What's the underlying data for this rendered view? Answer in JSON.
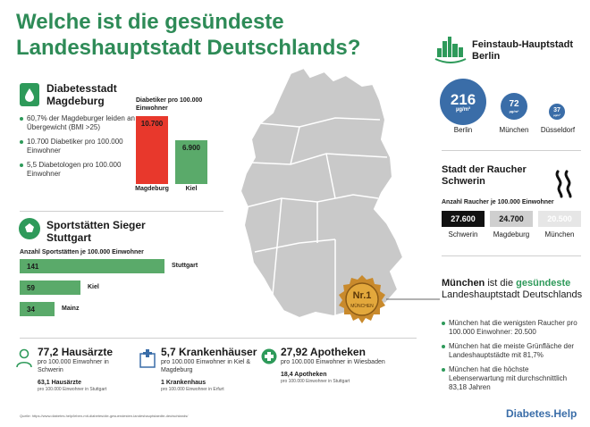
{
  "title": {
    "line1": "Welche ist die gesündeste",
    "line2": "Landeshauptstadt Deutschlands?"
  },
  "diabetes": {
    "title_line1": "Diabetesstadt",
    "title_line2": "Magdeburg",
    "bullets": [
      "60,7% der Magdeburger leiden an Übergewicht (BMI >25)",
      "10.700 Diabetiker pro 100.000 Einwohner",
      "5,5 Diabetologen pro 100.000 Einwohner"
    ],
    "chart_caption": "Diabetiker pro 100.000 Einwohner"
  },
  "sports": {
    "title_line1": "Sportstätten Sieger",
    "title_line2": "Stuttgart",
    "chart_caption": "Anzahl Sportstätten je 100.000 Einwohner"
  },
  "bottom_stats": [
    {
      "value": "77,2 Hausärzte",
      "sub": "pro 100.000 Einwohner in Schwerin",
      "small": "63,1 Hausärzte",
      "tiny": "pro 100.000 Einwohner in Stuttgart",
      "icon": "doctor-icon"
    },
    {
      "value": "5,7 Krankenhäuser",
      "sub": "pro 100.000 Einwohner in Kiel & Magdeburg",
      "small": "1 Krankenhaus",
      "tiny": "pro 100.000 Einwohner in Erfurt",
      "icon": "hospital-icon"
    },
    {
      "value": "27,92 Apotheken",
      "sub": "pro 100.000 Einwohner in Wiesbaden",
      "small": "18,4 Apotheken",
      "tiny": "pro 100.000 Einwohner in Stuttgart",
      "icon": "pharmacy-cross-icon"
    }
  ],
  "feinstaub": {
    "title_line1": "Feinstaub-Hauptstadt",
    "title_line2": "Berlin",
    "unit": "µg/m³",
    "cities": [
      {
        "value": "216",
        "city": "Berlin"
      },
      {
        "value": "72",
        "city": "München"
      },
      {
        "value": "37",
        "city": "Düsseldorf"
      }
    ]
  },
  "raucher": {
    "title_line1": "Stadt der Raucher",
    "title_line2": "Schwerin",
    "caption": "Anzahl Raucher je 100.000 Einwohner"
  },
  "muenchen": {
    "title_pre": "München",
    "title_mid": " ist die ",
    "title_bold": "gesündeste",
    "title_rest": " Landeshauptstadt Deutschlands",
    "badge_top": "Nr.1",
    "badge_bottom": "MÜNCHEN",
    "bullets": [
      "München hat die wenigsten Raucher pro 100.000 Einwohner: 20.500",
      "München hat die meiste Grünfläche der Landeshauptstädte mit 81,7%",
      "München hat die höchste Lebenserwartung mit durchschnittlich 83,18 Jahren"
    ]
  },
  "source": "Quelle: https://www.diabetes.help/leben-mit-diabetes/die-gesuendesten-landeshauptstaedte-deutschlands/",
  "brand": "Diabetes.Help",
  "colors": {
    "green": "#2e9a5a",
    "red": "#e8382c",
    "blue": "#3a6da8",
    "dark": "#111111"
  },
  "chart_data": [
    {
      "type": "bar",
      "title": "Diabetiker pro 100.000 Einwohner",
      "categories": [
        "Magdeburg",
        "Kiel"
      ],
      "values": [
        10700,
        6900
      ],
      "value_labels": [
        "10.700",
        "6.900"
      ],
      "ylim": [
        0,
        11000
      ]
    },
    {
      "type": "bar",
      "orientation": "horizontal",
      "title": "Anzahl Sportstätten je 100.000 Einwohner",
      "categories": [
        "Stuttgart",
        "Kiel",
        "Mainz"
      ],
      "values": [
        141,
        59,
        34
      ],
      "xlim": [
        0,
        141
      ]
    },
    {
      "type": "bar",
      "title": "Anzahl Raucher je 100.000 Einwohner",
      "categories": [
        "Schwerin",
        "Magdeburg",
        "München"
      ],
      "values": [
        27600,
        24700,
        20500
      ],
      "value_labels": [
        "27.600",
        "24.700",
        "20.500"
      ]
    }
  ]
}
